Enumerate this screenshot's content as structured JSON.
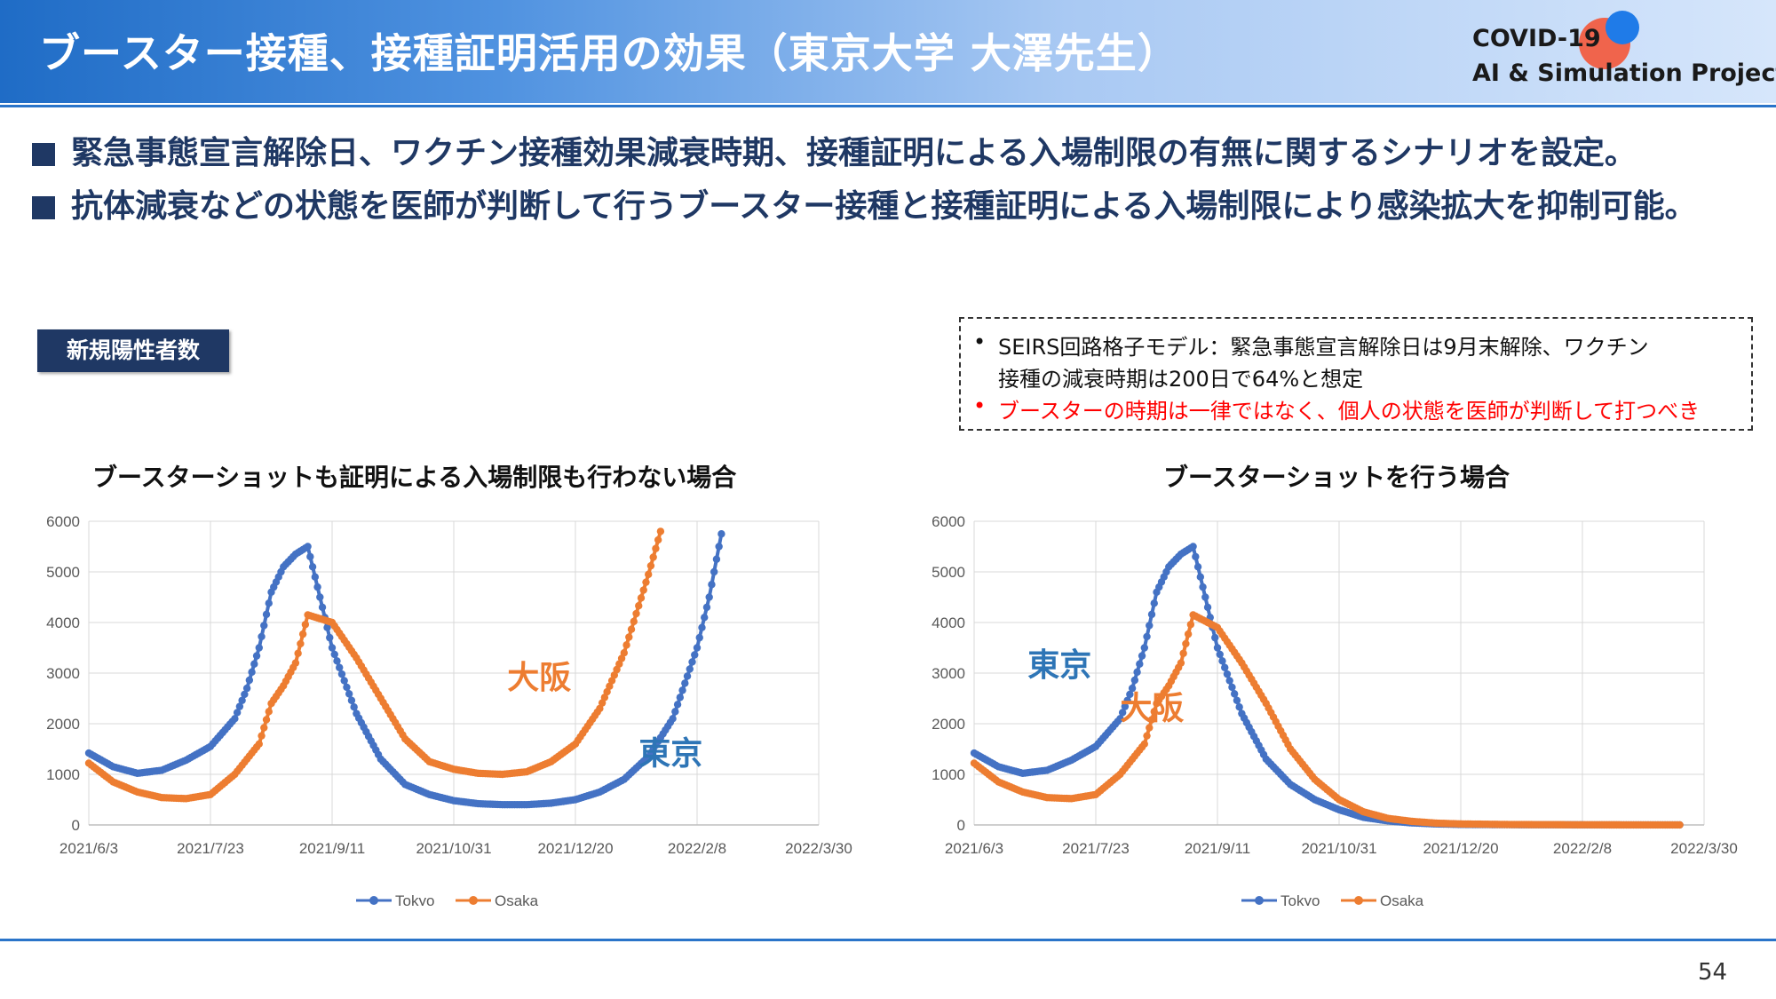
{
  "header": {
    "title": "ブースター接種、接種証明活用の効果（東京大学 大澤先生）",
    "logo_line1": "COVID-19",
    "logo_line2": "AI & Simulation Project"
  },
  "bullets": [
    "緊急事態宣言解除日、ワクチン接種効果減衰時期、接種証明による入場制限の有無に関するシナリオを設定。",
    "抗体減衰などの状態を医師が判断して行うブースター接種と接種証明による入場制限により感染拡大を抑制可能。"
  ],
  "tag_label": "新規陽性者数",
  "note": {
    "line1": "SEIRS回路格子モデル：緊急事態宣言解除日は9月末解除、ワクチン",
    "line2": "接種の減衰時期は200日で64%と想定",
    "line3": "ブースターの時期は一律ではなく、個人の状態を医師が判断して打つべき",
    "bullet_mark": "•"
  },
  "colors": {
    "tokyo": "#4472c4",
    "osaka": "#ed7d31",
    "tokyo_label": "#2e75b6",
    "highlight": "#ff0000",
    "navy": "#1f3864"
  },
  "page_number": "54",
  "chart_data": [
    {
      "type": "line",
      "title": "ブースターショットも証明による入場制限も行わない場合",
      "x_tick_labels": [
        "2021/6/3",
        "2021/7/23",
        "2021/9/11",
        "2021/10/31",
        "2021/12/20",
        "2022/2/8",
        "2022/3/30"
      ],
      "x_range_days": [
        0,
        300
      ],
      "ylim": [
        0,
        6000
      ],
      "y_ticks": [
        0,
        1000,
        2000,
        3000,
        4000,
        5000,
        6000
      ],
      "grid": true,
      "legend": "bottom",
      "annotations": {
        "osaka": "大阪",
        "tokyo": "東京"
      },
      "series": [
        {
          "name": "Tokyo",
          "x_days": [
            0,
            10,
            20,
            30,
            40,
            50,
            60,
            65,
            70,
            75,
            80,
            85,
            90,
            100,
            110,
            120,
            130,
            140,
            150,
            160,
            170,
            180,
            190,
            200,
            210,
            220,
            230,
            240,
            250,
            255,
            260
          ],
          "values": [
            1420,
            1150,
            1020,
            1080,
            1280,
            1550,
            2100,
            2700,
            3500,
            4600,
            5100,
            5350,
            5500,
            3500,
            2200,
            1300,
            800,
            600,
            480,
            420,
            400,
            400,
            430,
            500,
            650,
            900,
            1350,
            2100,
            3500,
            4500,
            5750
          ]
        },
        {
          "name": "Osaka",
          "x_days": [
            0,
            10,
            20,
            30,
            40,
            50,
            60,
            65,
            70,
            75,
            80,
            85,
            90,
            100,
            110,
            120,
            130,
            140,
            150,
            160,
            170,
            180,
            190,
            200,
            210,
            220,
            230,
            235
          ],
          "values": [
            1220,
            850,
            650,
            540,
            520,
            600,
            1000,
            1300,
            1600,
            2400,
            2750,
            3200,
            4150,
            4000,
            3300,
            2500,
            1700,
            1250,
            1100,
            1020,
            1000,
            1050,
            1250,
            1600,
            2300,
            3400,
            4950,
            5800
          ]
        }
      ]
    },
    {
      "type": "line",
      "title": "ブースターショットを行う場合",
      "x_tick_labels": [
        "2021/6/3",
        "2021/7/23",
        "2021/9/11",
        "2021/10/31",
        "2021/12/20",
        "2022/2/8",
        "2022/3/30"
      ],
      "x_range_days": [
        0,
        300
      ],
      "ylim": [
        0,
        6000
      ],
      "y_ticks": [
        0,
        1000,
        2000,
        3000,
        4000,
        5000,
        6000
      ],
      "grid": true,
      "legend": "bottom",
      "annotations": {
        "osaka": "大阪",
        "tokyo": "東京"
      },
      "series": [
        {
          "name": "Tokyo",
          "x_days": [
            0,
            10,
            20,
            30,
            40,
            50,
            60,
            65,
            70,
            75,
            80,
            85,
            90,
            100,
            110,
            120,
            130,
            140,
            150,
            160,
            170,
            180,
            190,
            200,
            220,
            250,
            280,
            290
          ],
          "values": [
            1420,
            1150,
            1020,
            1080,
            1280,
            1550,
            2100,
            2700,
            3500,
            4600,
            5100,
            5350,
            5500,
            3500,
            2200,
            1300,
            800,
            500,
            300,
            150,
            80,
            40,
            20,
            10,
            5,
            2,
            1,
            1
          ]
        },
        {
          "name": "Osaka",
          "x_days": [
            0,
            10,
            20,
            30,
            40,
            50,
            60,
            65,
            70,
            75,
            80,
            85,
            90,
            100,
            110,
            120,
            130,
            140,
            150,
            160,
            170,
            180,
            190,
            200,
            220,
            250,
            280,
            290
          ],
          "values": [
            1220,
            850,
            650,
            540,
            520,
            600,
            1000,
            1300,
            1600,
            2400,
            2750,
            3200,
            4150,
            3900,
            3200,
            2400,
            1500,
            900,
            500,
            260,
            130,
            70,
            35,
            20,
            8,
            3,
            1,
            1
          ]
        }
      ]
    }
  ]
}
